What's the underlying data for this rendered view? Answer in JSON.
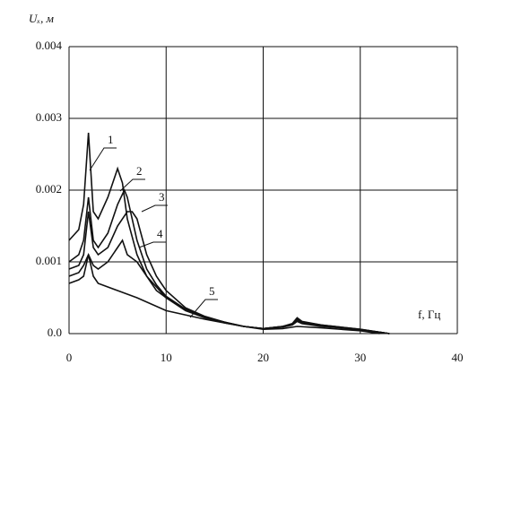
{
  "chart_data": {
    "type": "line",
    "y_label": "Uₓ, м",
    "x_label": "f, Гц",
    "xlim": [
      0,
      40
    ],
    "xticks": [
      0,
      10,
      20,
      30,
      40
    ],
    "ylim": [
      0,
      0.004
    ],
    "yticks": [
      {
        "value": 0,
        "label": "0.0"
      },
      0.001,
      0.002,
      0.003,
      0.004
    ],
    "grid": true,
    "series": [
      {
        "name": "1",
        "color": "#111111",
        "x": [
          0,
          1,
          1.5,
          2,
          2.5,
          3,
          4,
          5,
          5.5,
          6,
          7,
          8,
          9,
          10,
          12,
          14,
          16,
          18,
          20,
          22,
          23,
          23.5,
          24,
          26,
          28,
          30,
          32,
          33
        ],
        "values": [
          0.0013,
          0.00145,
          0.0018,
          0.0028,
          0.0017,
          0.0016,
          0.0019,
          0.0023,
          0.0021,
          0.0016,
          0.0011,
          0.0008,
          0.0006,
          0.0005,
          0.00033,
          0.00022,
          0.00016,
          0.0001,
          7e-05,
          0.0001,
          0.00014,
          0.00022,
          0.00017,
          0.00012,
          9e-05,
          6e-05,
          2e-05,
          0
        ]
      },
      {
        "name": "2",
        "color": "#111111",
        "x": [
          0,
          1,
          1.5,
          2,
          2.5,
          3,
          4,
          5,
          5.7,
          6,
          7,
          8,
          9,
          10,
          12,
          14,
          16,
          18,
          20,
          22,
          23,
          23.5,
          24,
          26,
          28,
          30,
          32,
          33
        ],
        "values": [
          0.001,
          0.0011,
          0.0013,
          0.0019,
          0.0013,
          0.0012,
          0.0014,
          0.0018,
          0.002,
          0.0019,
          0.0013,
          0.0009,
          0.00068,
          0.00052,
          0.00034,
          0.00023,
          0.00016,
          0.0001,
          7e-05,
          0.0001,
          0.00013,
          0.0002,
          0.00016,
          0.00012,
          9e-05,
          6e-05,
          2e-05,
          0
        ]
      },
      {
        "name": "3",
        "color": "#111111",
        "x": [
          0,
          1,
          1.5,
          2,
          2.5,
          3,
          4,
          5,
          6,
          6.5,
          7,
          8,
          9,
          10,
          12,
          14,
          16,
          18,
          20,
          22,
          23,
          23.5,
          24,
          26,
          28,
          30,
          32,
          33
        ],
        "values": [
          0.0009,
          0.00095,
          0.0011,
          0.0017,
          0.0012,
          0.0011,
          0.0012,
          0.0015,
          0.0017,
          0.0017,
          0.0016,
          0.0011,
          0.0008,
          0.0006,
          0.00036,
          0.00024,
          0.00016,
          0.0001,
          7e-05,
          0.0001,
          0.00013,
          0.00019,
          0.00015,
          0.00011,
          8e-05,
          5e-05,
          2e-05,
          0
        ]
      },
      {
        "name": "4",
        "color": "#111111",
        "x": [
          0,
          1,
          1.5,
          2,
          2.5,
          3,
          4,
          5,
          5.5,
          6,
          7,
          8,
          9,
          10,
          12,
          14,
          16,
          18,
          20,
          22,
          23,
          23.5,
          24,
          26,
          28,
          30,
          32,
          33
        ],
        "values": [
          0.0008,
          0.00085,
          0.00095,
          0.0011,
          0.00095,
          0.0009,
          0.001,
          0.0012,
          0.0013,
          0.0011,
          0.001,
          0.0008,
          0.00065,
          0.0005,
          0.00032,
          0.00022,
          0.00015,
          0.0001,
          7e-05,
          9e-05,
          0.00012,
          0.00017,
          0.00014,
          0.0001,
          8e-05,
          5e-05,
          2e-05,
          0
        ]
      },
      {
        "name": "5",
        "color": "#111111",
        "x": [
          0,
          1,
          1.5,
          2,
          2.5,
          3,
          5,
          7,
          10,
          14,
          18,
          20,
          22,
          23.5,
          26,
          30,
          32
        ],
        "values": [
          0.0007,
          0.00075,
          0.0008,
          0.0011,
          0.0008,
          0.0007,
          0.0006,
          0.0005,
          0.00032,
          0.0002,
          0.0001,
          6e-05,
          7e-05,
          0.0001,
          8e-05,
          4e-05,
          0
        ]
      }
    ]
  }
}
